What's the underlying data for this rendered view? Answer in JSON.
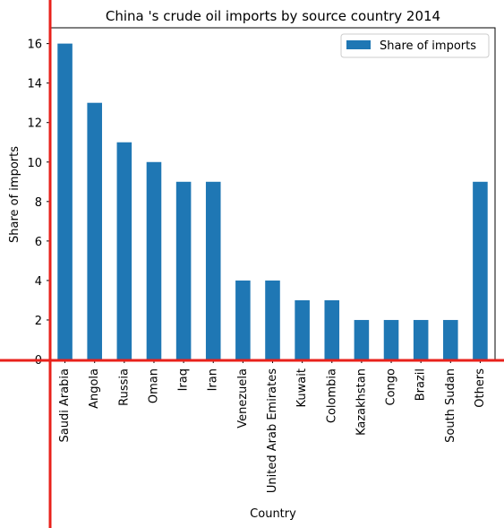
{
  "colors": {
    "bar": "#1f77b4",
    "axis_line": "#000000",
    "overlay_line": "#e8211b",
    "legend_border": "#cccccc"
  },
  "chart_data": {
    "type": "bar",
    "title": "China 's crude oil imports by source country 2014",
    "xlabel": "Country",
    "ylabel": "Share of imports",
    "categories": [
      "Saudi Arabia",
      "Angola",
      "Russia",
      "Oman",
      "Iraq",
      "Iran",
      "Venezuela",
      "United Arab Emirates",
      "Kuwait",
      "Colombia",
      "Kazakhstan",
      "Congo",
      "Brazil",
      "South Sudan",
      "Others"
    ],
    "series": [
      {
        "name": "Share of imports",
        "values": [
          16,
          13,
          11,
          10,
          9,
          9,
          4,
          4,
          3,
          3,
          2,
          2,
          2,
          2,
          9
        ]
      }
    ],
    "ylim": [
      0,
      16.8
    ],
    "yticks": [
      0,
      2,
      4,
      6,
      8,
      10,
      12,
      14,
      16
    ],
    "grid": false,
    "legend_position": "top-right"
  }
}
